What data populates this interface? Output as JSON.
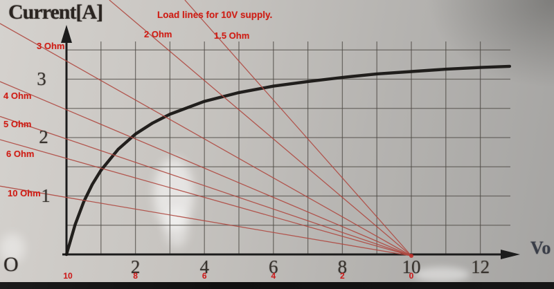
{
  "origin_label": "O",
  "colors": {
    "accent_red_text": "#cf2018",
    "load_line_red": "#b04a42",
    "ink": "#1c1c1c",
    "grid": "#4e4a45",
    "background_light": "#d5d2ce",
    "background_dark": "#a5a4a2",
    "bottom_bar": "#131313"
  },
  "chart_data": {
    "type": "line",
    "title": "Load lines for 10V supply.",
    "ylabel": "Current[A]",
    "xlabel": "Vo",
    "xlim": [
      0,
      13.2
    ],
    "ylim": [
      0,
      3.85
    ],
    "grid": true,
    "x_ticks": [
      2,
      4,
      6,
      8,
      10,
      12
    ],
    "y_ticks": [
      1,
      2,
      3
    ],
    "secondary_x_ticks": [
      {
        "at_v": 0,
        "label": "10"
      },
      {
        "at_v": 2,
        "label": "8"
      },
      {
        "at_v": 4,
        "label": "6"
      },
      {
        "at_v": 6,
        "label": "4"
      },
      {
        "at_v": 8,
        "label": "2"
      },
      {
        "at_v": 10,
        "label": "0"
      }
    ],
    "series": [
      {
        "name": "device-iv-curve",
        "x": [
          0,
          0.25,
          0.5,
          0.75,
          1,
          1.5,
          2,
          2.5,
          3,
          4,
          5,
          6,
          7,
          8,
          9,
          10,
          11,
          12,
          12.85
        ],
        "y": [
          0,
          0.51,
          0.9,
          1.2,
          1.44,
          1.8,
          2.06,
          2.25,
          2.4,
          2.62,
          2.77,
          2.88,
          2.96,
          3.03,
          3.09,
          3.13,
          3.17,
          3.2,
          3.22
        ]
      }
    ],
    "load_lines": {
      "supply_voltage_v": 10,
      "anchor": {
        "v": 10,
        "i": 0
      },
      "items": [
        {
          "label": "1.5 Ohm",
          "r": 1.5,
          "i_intercept": 6.67
        },
        {
          "label": "2 Ohm",
          "r": 2,
          "i_intercept": 5.0
        },
        {
          "label": "3 Ohm",
          "r": 3,
          "i_intercept": 3.33
        },
        {
          "label": "4 Ohm",
          "r": 4,
          "i_intercept": 2.5
        },
        {
          "label": "5 Ohm",
          "r": 5,
          "i_intercept": 2.0
        },
        {
          "label": "6 Ohm",
          "r": 6,
          "i_intercept": 1.67
        },
        {
          "label": "10 Ohm",
          "r": 10,
          "i_intercept": 1.0
        }
      ]
    }
  }
}
